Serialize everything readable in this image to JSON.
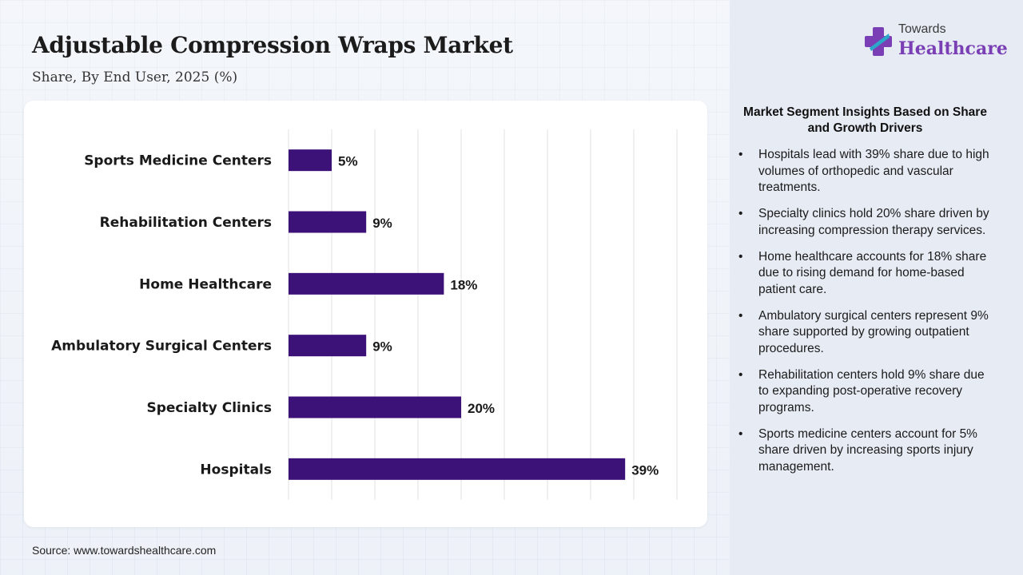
{
  "header": {
    "title": "Adjustable Compression Wraps Market",
    "subtitle": "Share, By End User, 2025 (%)"
  },
  "logo": {
    "top_text": "Towards",
    "bottom_text": "Healthcare",
    "icon": "medical-cross-icon",
    "colors": {
      "purple": "#7a3fb5",
      "cyan": "#2aa7c9"
    }
  },
  "chart_data": {
    "type": "bar",
    "orientation": "horizontal",
    "categories": [
      "Sports Medicine Centers",
      "Rehabilitation Centers",
      "Home Healthcare",
      "Ambulatory Surgical Centers",
      "Specialty Clinics",
      "Hospitals"
    ],
    "values": [
      5,
      9,
      18,
      9,
      20,
      39
    ],
    "value_labels": [
      "5%",
      "9%",
      "18%",
      "9%",
      "20%",
      "39%"
    ],
    "xlim": [
      0,
      45
    ],
    "grid": true,
    "bar_color": "#3d1278"
  },
  "insights": {
    "title": "Market Segment Insights Based on Share and Growth Drivers",
    "bullet": "•",
    "items": [
      "Hospitals lead with 39% share due to high volumes of orthopedic and vascular treatments.",
      "Specialty clinics hold 20% share driven by increasing compression therapy services.",
      "Home healthcare accounts for 18% share due to rising demand for home-based patient care.",
      "Ambulatory surgical centers represent 9% share supported by growing outpatient procedures.",
      "Rehabilitation centers hold 9% share due to expanding post-operative recovery programs.",
      "Sports medicine centers account for 5% share driven by increasing sports injury management."
    ]
  },
  "footer": {
    "source": "Source: www.towardshealthcare.com"
  }
}
